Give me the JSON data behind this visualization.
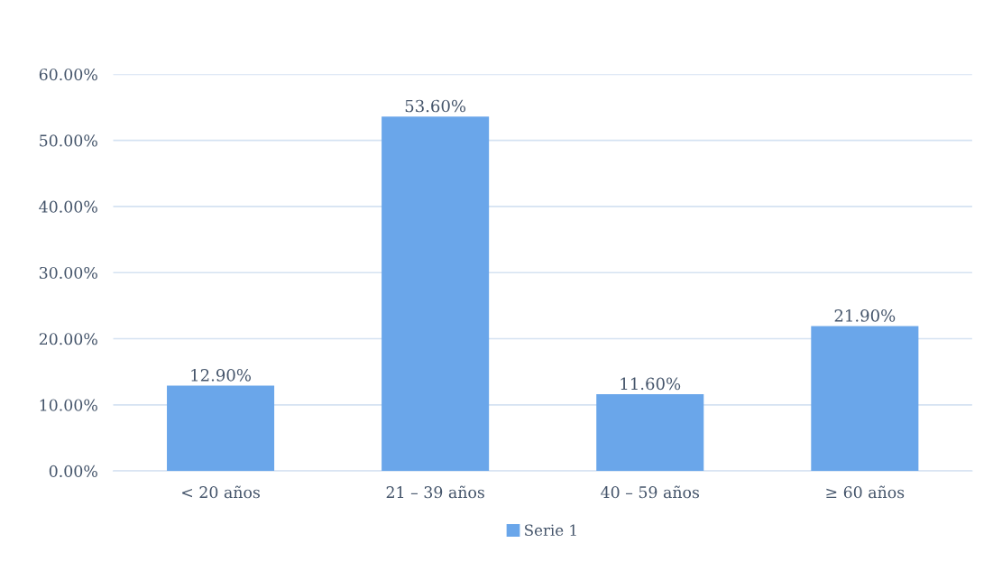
{
  "chart_data": {
    "type": "bar",
    "categories": [
      "< 20 años",
      "21 – 39 años",
      "40 – 59 años",
      "≥ 60 años"
    ],
    "series": [
      {
        "name": "Serie 1",
        "color": "#6aa6ea",
        "values": [
          12.9,
          53.6,
          11.6,
          21.9
        ],
        "value_labels": [
          "12.90%",
          "53.60%",
          "11.60%",
          "21.90%"
        ]
      }
    ],
    "ylim": [
      0,
      60
    ],
    "yticks": [
      {
        "value": 0,
        "label": "0.00%"
      },
      {
        "value": 10,
        "label": "10.00%"
      },
      {
        "value": 20,
        "label": "20.00%"
      },
      {
        "value": 30,
        "label": "30.00%"
      },
      {
        "value": 40,
        "label": "40.00%"
      },
      {
        "value": 50,
        "label": "50.00%"
      },
      {
        "value": 60,
        "label": "60.00%"
      }
    ],
    "grid": "y",
    "legend": "bottom"
  }
}
